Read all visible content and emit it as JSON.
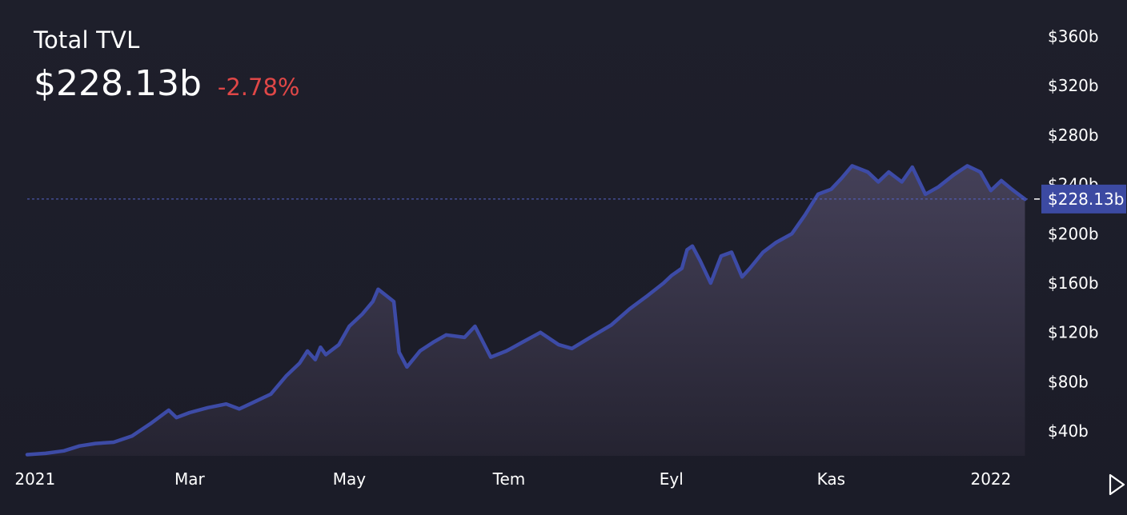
{
  "header": {
    "title": "Total TVL",
    "value": "$228.13b",
    "change": "-2.78%"
  },
  "colors": {
    "line": "#3d4ba6",
    "price_label_bg": "#3c4aa2",
    "change_negative": "#e04747",
    "background": "#1b1c27"
  },
  "chart_data": {
    "type": "area",
    "ylabel": "",
    "xlabel": "",
    "ylim": [
      20,
      370
    ],
    "y_ticks": [
      40,
      80,
      120,
      160,
      200,
      240,
      280,
      320,
      360
    ],
    "y_tick_labels": [
      "$40b",
      "$80b",
      "$120b",
      "$160b",
      "$200b",
      "$240b",
      "$280b",
      "$320b",
      "$360b"
    ],
    "x_tick_labels": [
      {
        "label": "2021",
        "date": "2021-01-01"
      },
      {
        "label": "Mar",
        "date": "2021-03-01"
      },
      {
        "label": "May",
        "date": "2021-05-01"
      },
      {
        "label": "Tem",
        "date": "2021-07-01"
      },
      {
        "label": "Eyl",
        "date": "2021-09-01"
      },
      {
        "label": "Kas",
        "date": "2021-11-01"
      },
      {
        "label": "2022",
        "date": "2022-01-01"
      }
    ],
    "xlim": [
      "2020-12-29",
      "2022-01-16"
    ],
    "current_value": 228.13,
    "current_label": "$228.13b",
    "series": [
      {
        "points": [
          [
            "2020-12-29",
            21
          ],
          [
            "2021-01-05",
            22
          ],
          [
            "2021-01-12",
            24
          ],
          [
            "2021-01-18",
            28
          ],
          [
            "2021-01-24",
            30
          ],
          [
            "2021-01-31",
            31
          ],
          [
            "2021-02-07",
            36
          ],
          [
            "2021-02-14",
            46
          ],
          [
            "2021-02-21",
            57
          ],
          [
            "2021-02-24",
            51
          ],
          [
            "2021-03-01",
            55
          ],
          [
            "2021-03-08",
            59
          ],
          [
            "2021-03-15",
            62
          ],
          [
            "2021-03-20",
            58
          ],
          [
            "2021-03-25",
            63
          ],
          [
            "2021-04-01",
            70
          ],
          [
            "2021-04-07",
            85
          ],
          [
            "2021-04-12",
            95
          ],
          [
            "2021-04-15",
            105
          ],
          [
            "2021-04-18",
            98
          ],
          [
            "2021-04-20",
            108
          ],
          [
            "2021-04-22",
            102
          ],
          [
            "2021-04-27",
            110
          ],
          [
            "2021-05-01",
            125
          ],
          [
            "2021-05-06",
            135
          ],
          [
            "2021-05-10",
            145
          ],
          [
            "2021-05-12",
            155
          ],
          [
            "2021-05-15",
            150
          ],
          [
            "2021-05-18",
            145
          ],
          [
            "2021-05-20",
            104
          ],
          [
            "2021-05-23",
            92
          ],
          [
            "2021-05-28",
            105
          ],
          [
            "2021-06-02",
            112
          ],
          [
            "2021-06-07",
            118
          ],
          [
            "2021-06-14",
            116
          ],
          [
            "2021-06-18",
            125
          ],
          [
            "2021-06-24",
            100
          ],
          [
            "2021-06-30",
            105
          ],
          [
            "2021-07-06",
            112
          ],
          [
            "2021-07-13",
            120
          ],
          [
            "2021-07-20",
            110
          ],
          [
            "2021-07-25",
            107
          ],
          [
            "2021-08-01",
            116
          ],
          [
            "2021-08-09",
            126
          ],
          [
            "2021-08-16",
            139
          ],
          [
            "2021-08-23",
            150
          ],
          [
            "2021-08-29",
            160
          ],
          [
            "2021-09-01",
            166
          ],
          [
            "2021-09-05",
            172
          ],
          [
            "2021-09-07",
            187
          ],
          [
            "2021-09-09",
            190
          ],
          [
            "2021-09-12",
            178
          ],
          [
            "2021-09-16",
            160
          ],
          [
            "2021-09-20",
            182
          ],
          [
            "2021-09-24",
            185
          ],
          [
            "2021-09-28",
            165
          ],
          [
            "2021-10-01",
            172
          ],
          [
            "2021-10-06",
            185
          ],
          [
            "2021-10-11",
            193
          ],
          [
            "2021-10-17",
            200
          ],
          [
            "2021-10-22",
            215
          ],
          [
            "2021-10-27",
            232
          ],
          [
            "2021-11-01",
            236
          ],
          [
            "2021-11-05",
            245
          ],
          [
            "2021-11-09",
            255
          ],
          [
            "2021-11-15",
            250
          ],
          [
            "2021-11-19",
            242
          ],
          [
            "2021-11-23",
            250
          ],
          [
            "2021-11-28",
            242
          ],
          [
            "2021-12-02",
            254
          ],
          [
            "2021-12-07",
            232
          ],
          [
            "2021-12-12",
            238
          ],
          [
            "2021-12-18",
            248
          ],
          [
            "2021-12-23",
            255
          ],
          [
            "2021-12-28",
            250
          ],
          [
            "2022-01-01",
            235
          ],
          [
            "2022-01-05",
            243
          ],
          [
            "2022-01-09",
            236
          ],
          [
            "2022-01-14",
            228
          ]
        ]
      }
    ]
  },
  "controls": {
    "play_icon": "play-icon"
  }
}
